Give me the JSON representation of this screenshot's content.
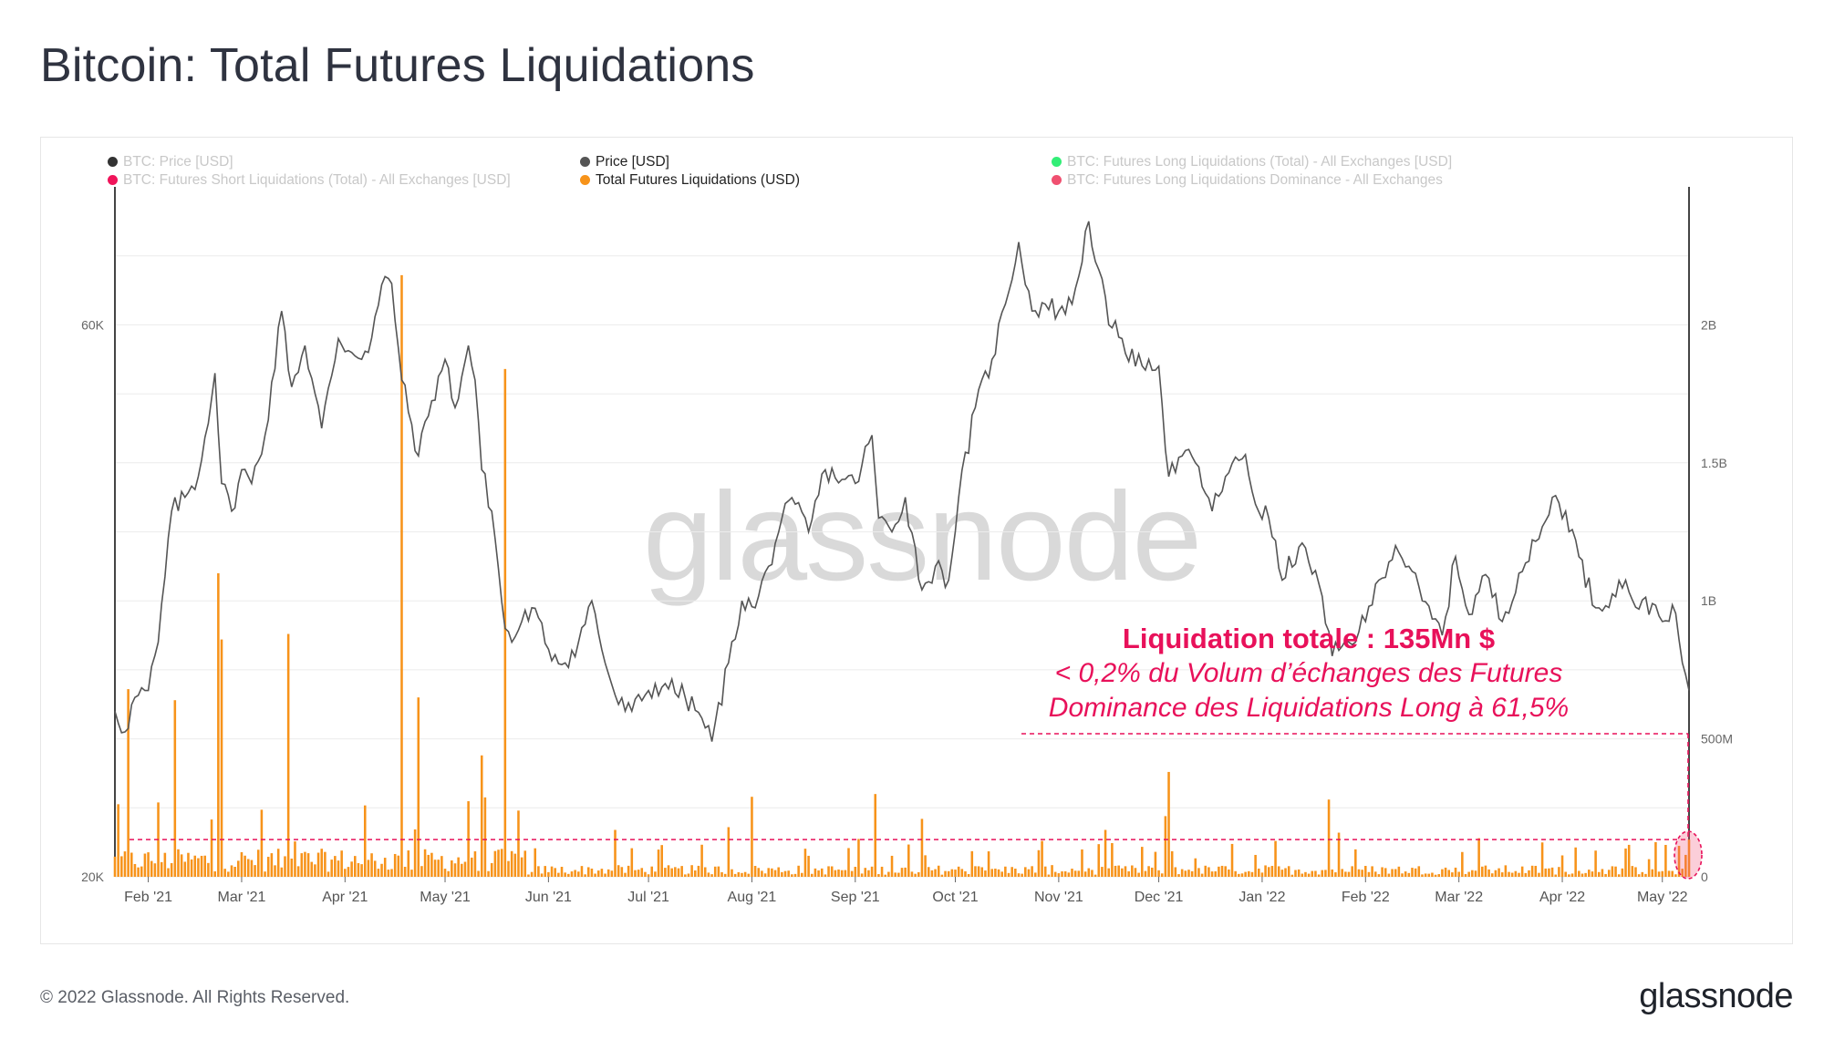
{
  "title": "Bitcoin: Total Futures Liquidations",
  "legend": [
    {
      "label": "BTC: Price [USD]",
      "color": "#333333",
      "active": false
    },
    {
      "label": "Price [USD]",
      "color": "#555555",
      "active": true
    },
    {
      "label": "BTC: Futures Long Liquidations (Total) - All Exchanges [USD]",
      "color": "#33ee77",
      "active": false
    },
    {
      "label": "BTC: Futures Short Liquidations (Total) - All Exchanges [USD]",
      "color": "#f0145a",
      "active": false
    },
    {
      "label": "Total Futures Liquidations (USD)",
      "color": "#f7931a",
      "active": true
    },
    {
      "label": "BTC: Futures Long Liquidations Dominance - All Exchanges",
      "color": "#f05070",
      "active": false
    }
  ],
  "watermark": "glassnode",
  "annotation": {
    "title": "Liquidation totale : 135Mn $",
    "line1": "< 0,2% du Volum d’échanges des Futures",
    "line2": "Dominance des Liquidations Long à 61,5%",
    "color": "#e8115a"
  },
  "footer": "© 2022 Glassnode. All Rights Reserved.",
  "brand": "glassnode",
  "chart_data": {
    "type": "line+bar",
    "x_start": "2021-01-22",
    "x_end": "2022-05-09",
    "x_tick_labels": [
      "Feb '21",
      "Mar '21",
      "Apr '21",
      "May '21",
      "Jun '21",
      "Jul '21",
      "Aug '21",
      "Sep '21",
      "Oct '21",
      "Nov '21",
      "Dec '21",
      "Jan '22",
      "Feb '22",
      "Mar '22",
      "Apr '22",
      "May '22"
    ],
    "x_tick_dates": [
      "2021-02-01",
      "2021-03-01",
      "2021-04-01",
      "2021-05-01",
      "2021-06-01",
      "2021-07-01",
      "2021-08-01",
      "2021-09-01",
      "2021-10-01",
      "2021-11-01",
      "2021-12-01",
      "2022-01-01",
      "2022-02-01",
      "2022-03-01",
      "2022-04-01",
      "2022-05-01"
    ],
    "left_axis": {
      "label": "",
      "ticks": [
        20000,
        60000
      ],
      "tick_labels": [
        "20K",
        "60K"
      ],
      "range": [
        20000,
        70000
      ]
    },
    "right_axis": {
      "label": "",
      "ticks": [
        0,
        500000000,
        1000000000,
        1500000000,
        2000000000
      ],
      "tick_labels": [
        "0",
        "500M",
        "1B",
        "1.5B",
        "2B"
      ],
      "range": [
        0,
        2500000000
      ]
    },
    "grid": true,
    "series": [
      {
        "name": "Price [USD]",
        "axis": "left",
        "color": "#555555",
        "points": [
          [
            "2021-01-22",
            32000
          ],
          [
            "2021-01-25",
            30500
          ],
          [
            "2021-01-28",
            33000
          ],
          [
            "2021-02-01",
            33500
          ],
          [
            "2021-02-04",
            37000
          ],
          [
            "2021-02-08",
            46500
          ],
          [
            "2021-02-12",
            47500
          ],
          [
            "2021-02-16",
            49000
          ],
          [
            "2021-02-21",
            56500
          ],
          [
            "2021-02-23",
            48500
          ],
          [
            "2021-02-26",
            46500
          ],
          [
            "2021-03-01",
            49500
          ],
          [
            "2021-03-04",
            48500
          ],
          [
            "2021-03-08",
            52000
          ],
          [
            "2021-03-13",
            61000
          ],
          [
            "2021-03-16",
            55500
          ],
          [
            "2021-03-20",
            58500
          ],
          [
            "2021-03-25",
            52500
          ],
          [
            "2021-03-30",
            59000
          ],
          [
            "2021-04-03",
            58000
          ],
          [
            "2021-04-08",
            58000
          ],
          [
            "2021-04-13",
            63500
          ],
          [
            "2021-04-15",
            63000
          ],
          [
            "2021-04-18",
            56000
          ],
          [
            "2021-04-23",
            50500
          ],
          [
            "2021-04-27",
            54500
          ],
          [
            "2021-05-01",
            57500
          ],
          [
            "2021-05-04",
            54000
          ],
          [
            "2021-05-08",
            58500
          ],
          [
            "2021-05-10",
            56000
          ],
          [
            "2021-05-12",
            49500
          ],
          [
            "2021-05-15",
            46500
          ],
          [
            "2021-05-19",
            38000
          ],
          [
            "2021-05-21",
            37000
          ],
          [
            "2021-05-24",
            38500
          ],
          [
            "2021-05-27",
            39500
          ],
          [
            "2021-06-01",
            36500
          ],
          [
            "2021-06-06",
            35500
          ],
          [
            "2021-06-10",
            37000
          ],
          [
            "2021-06-14",
            40000
          ],
          [
            "2021-06-18",
            35500
          ],
          [
            "2021-06-22",
            32500
          ],
          [
            "2021-06-26",
            32000
          ],
          [
            "2021-07-01",
            33500
          ],
          [
            "2021-07-06",
            34000
          ],
          [
            "2021-07-12",
            33000
          ],
          [
            "2021-07-17",
            31500
          ],
          [
            "2021-07-20",
            29800
          ],
          [
            "2021-07-25",
            35500
          ],
          [
            "2021-07-29",
            40000
          ],
          [
            "2021-08-02",
            39500
          ],
          [
            "2021-08-06",
            42500
          ],
          [
            "2021-08-10",
            46000
          ],
          [
            "2021-08-14",
            47000
          ],
          [
            "2021-08-18",
            45000
          ],
          [
            "2021-08-23",
            49500
          ],
          [
            "2021-08-28",
            48800
          ],
          [
            "2021-09-01",
            48500
          ],
          [
            "2021-09-06",
            52000
          ],
          [
            "2021-09-08",
            46000
          ],
          [
            "2021-09-12",
            45000
          ],
          [
            "2021-09-16",
            47500
          ],
          [
            "2021-09-21",
            40800
          ],
          [
            "2021-09-25",
            42500
          ],
          [
            "2021-09-29",
            41500
          ],
          [
            "2021-10-02",
            47500
          ],
          [
            "2021-10-07",
            54000
          ],
          [
            "2021-10-12",
            57500
          ],
          [
            "2021-10-16",
            61500
          ],
          [
            "2021-10-20",
            66000
          ],
          [
            "2021-10-24",
            61000
          ],
          [
            "2021-10-28",
            61500
          ],
          [
            "2021-11-01",
            61000
          ],
          [
            "2021-11-05",
            61500
          ],
          [
            "2021-11-10",
            67500
          ],
          [
            "2021-11-13",
            64000
          ],
          [
            "2021-11-16",
            60000
          ],
          [
            "2021-11-20",
            59000
          ],
          [
            "2021-11-24",
            57000
          ],
          [
            "2021-11-28",
            57500
          ],
          [
            "2021-12-01",
            57000
          ],
          [
            "2021-12-04",
            49000
          ],
          [
            "2021-12-08",
            50500
          ],
          [
            "2021-12-12",
            50000
          ],
          [
            "2021-12-17",
            46500
          ],
          [
            "2021-12-21",
            49000
          ],
          [
            "2021-12-27",
            50600
          ],
          [
            "2021-12-30",
            47000
          ],
          [
            "2022-01-03",
            46000
          ],
          [
            "2022-01-07",
            41500
          ],
          [
            "2022-01-12",
            43900
          ],
          [
            "2022-01-17",
            42200
          ],
          [
            "2022-01-22",
            36000
          ],
          [
            "2022-01-27",
            37000
          ],
          [
            "2022-02-01",
            38500
          ],
          [
            "2022-02-05",
            41500
          ],
          [
            "2022-02-10",
            44000
          ],
          [
            "2022-02-14",
            42500
          ],
          [
            "2022-02-18",
            40000
          ],
          [
            "2022-02-24",
            37500
          ],
          [
            "2022-02-28",
            43200
          ],
          [
            "2022-03-04",
            39000
          ],
          [
            "2022-03-09",
            41900
          ],
          [
            "2022-03-14",
            38500
          ],
          [
            "2022-03-19",
            42000
          ],
          [
            "2022-03-25",
            44500
          ],
          [
            "2022-03-29",
            47500
          ],
          [
            "2022-04-02",
            46500
          ],
          [
            "2022-04-06",
            43200
          ],
          [
            "2022-04-11",
            39500
          ],
          [
            "2022-04-16",
            40500
          ],
          [
            "2022-04-20",
            41500
          ],
          [
            "2022-04-24",
            39400
          ],
          [
            "2022-04-28",
            39800
          ],
          [
            "2022-05-01",
            38500
          ],
          [
            "2022-05-04",
            39700
          ],
          [
            "2022-05-07",
            35500
          ],
          [
            "2022-05-09",
            33500
          ]
        ]
      },
      {
        "name": "Total Futures Liquidations (USD)",
        "axis": "right",
        "color": "#f7931a",
        "spikes": [
          [
            "2021-01-26",
            680000000
          ],
          [
            "2021-02-09",
            640000000
          ],
          [
            "2021-02-22",
            1100000000
          ],
          [
            "2021-02-23",
            860000000
          ],
          [
            "2021-03-15",
            880000000
          ],
          [
            "2021-04-18",
            2180000000
          ],
          [
            "2021-04-23",
            650000000
          ],
          [
            "2021-05-12",
            440000000
          ],
          [
            "2021-05-19",
            1840000000
          ],
          [
            "2021-05-23",
            240000000
          ],
          [
            "2021-06-21",
            170000000
          ],
          [
            "2021-07-25",
            180000000
          ],
          [
            "2021-08-01",
            290000000
          ],
          [
            "2021-09-07",
            300000000
          ],
          [
            "2021-09-21",
            210000000
          ],
          [
            "2021-10-27",
            130000000
          ],
          [
            "2021-11-15",
            170000000
          ],
          [
            "2021-12-04",
            380000000
          ],
          [
            "2021-12-03",
            220000000
          ],
          [
            "2022-01-05",
            130000000
          ],
          [
            "2022-01-21",
            280000000
          ],
          [
            "2022-01-24",
            160000000
          ],
          [
            "2022-03-07",
            140000000
          ],
          [
            "2022-04-11",
            95000000
          ],
          [
            "2022-05-09",
            135000000
          ]
        ]
      }
    ],
    "annotations": {
      "reference_line_value": 135000000,
      "highlight_date": "2022-05-09"
    }
  }
}
